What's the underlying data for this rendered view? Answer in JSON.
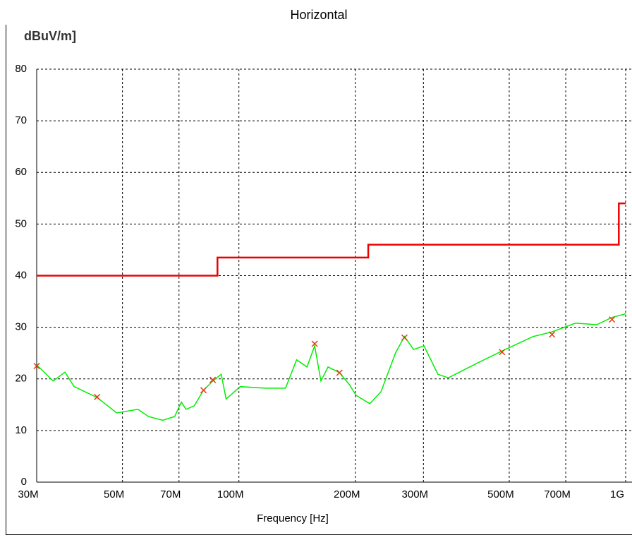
{
  "chart_data": {
    "type": "line",
    "title": "Horizontal",
    "ylabel": "dBuV/m]",
    "xlabel": "Frequency [Hz]",
    "xscale": "log",
    "xlim": [
      30000000,
      1000000000
    ],
    "ylim": [
      0,
      80
    ],
    "xticks": [
      {
        "value": 30000000,
        "label": "30M"
      },
      {
        "value": 50000000,
        "label": "50M"
      },
      {
        "value": 70000000,
        "label": "70M"
      },
      {
        "value": 100000000,
        "label": "100M"
      },
      {
        "value": 200000000,
        "label": "200M"
      },
      {
        "value": 300000000,
        "label": "300M"
      },
      {
        "value": 500000000,
        "label": "500M"
      },
      {
        "value": 700000000,
        "label": "700M"
      },
      {
        "value": 1000000000,
        "label": "1G"
      }
    ],
    "yticks": [
      0,
      10,
      20,
      30,
      40,
      50,
      60,
      70,
      80
    ],
    "grid": true,
    "series": [
      {
        "color": "#00ee00",
        "kind": "line",
        "x": [
          30000000,
          33100000,
          35500000,
          37500000,
          43000000,
          48300000,
          54800000,
          58400000,
          63500000,
          68200000,
          71000000,
          73000000,
          76700000,
          81000000,
          85600000,
          90000000,
          92700000,
          100800000,
          116800000,
          132000000,
          141000000,
          150000000,
          157000000,
          163000000,
          170000000,
          182000000,
          193000000,
          201000000,
          218000000,
          233000000,
          254000000,
          268000000,
          283000000,
          301000000,
          327000000,
          348000000,
          412000000,
          479000000,
          576000000,
          645000000,
          742000000,
          842000000,
          922000000,
          1000000000
        ],
        "values": [
          22.7,
          19.6,
          21.3,
          18.5,
          16.4,
          13.4,
          14.1,
          12.7,
          12,
          12.7,
          15.5,
          14.1,
          14.8,
          17.8,
          19.6,
          20.9,
          16.1,
          18.5,
          18.2,
          18.2,
          23.7,
          22.3,
          26.4,
          19.6,
          22.3,
          21.2,
          18.9,
          16.8,
          15.2,
          17.5,
          25,
          28.2,
          25.7,
          26.4,
          20.9,
          20.2,
          23,
          25.4,
          28.2,
          29.1,
          30.8,
          30.5,
          31.9,
          32.6
        ]
      },
      {
        "color": "#ee0000",
        "kind": "line",
        "x": [
          30000000,
          88000000,
          88000000,
          216000000,
          216000000,
          960000000,
          960000000,
          1000000000
        ],
        "values": [
          40,
          40,
          43.5,
          43.5,
          46,
          46,
          54,
          54
        ]
      },
      {
        "color": "#ee3311",
        "kind": "marker",
        "x": [
          30000000,
          43000000,
          81000000,
          85600000,
          157000000,
          182000000,
          268000000,
          479000000,
          645000000,
          922000000
        ],
        "values": [
          22.5,
          16.5,
          17.8,
          19.8,
          26.8,
          21.2,
          28,
          25.2,
          28.6,
          31.5
        ]
      }
    ]
  }
}
